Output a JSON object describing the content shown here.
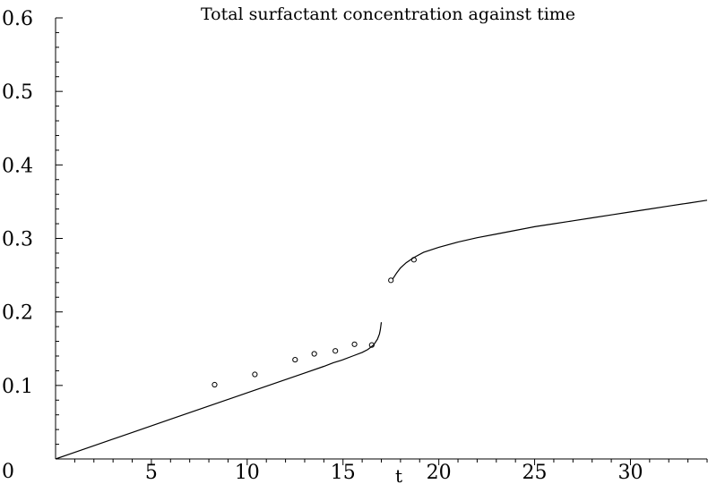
{
  "chart_data": {
    "type": "line",
    "title": "Total surfactant concentration against time",
    "xlabel": "t",
    "ylabel": "",
    "xlim": [
      0,
      34
    ],
    "ylim": [
      0,
      0.6
    ],
    "x_ticks": [
      5,
      10,
      15,
      20,
      25,
      30
    ],
    "x_tick_labels": [
      "5",
      "10",
      "15",
      "20",
      "25",
      "30"
    ],
    "y_ticks": [
      0.1,
      0.2,
      0.3,
      0.4,
      0.5,
      0.6
    ],
    "y_tick_labels": [
      "0.1",
      "0.2",
      "0.3",
      "0.4",
      "0.5",
      "0.6"
    ],
    "origin_label": "0",
    "grid": false,
    "legend": "none",
    "series": [
      {
        "kind": "line",
        "segments": [
          {
            "x": [
              0,
              2,
              4,
              6,
              8,
              10,
              12,
              13,
              14,
              14.5,
              15,
              15.5,
              16,
              16.3,
              16.6,
              16.8,
              16.9,
              16.95,
              17.0
            ],
            "y": [
              0,
              0.018,
              0.036,
              0.054,
              0.072,
              0.09,
              0.108,
              0.117,
              0.126,
              0.131,
              0.135,
              0.14,
              0.145,
              0.149,
              0.155,
              0.163,
              0.17,
              0.176,
              0.186
            ]
          },
          {
            "x": [
              17.6,
              17.8,
              18.0,
              18.3,
              18.7,
              19.2,
              20,
              21,
              22,
              23,
              24,
              25,
              26,
              27,
              28,
              29,
              30,
              31,
              32,
              33,
              34
            ],
            "y": [
              0.245,
              0.253,
              0.26,
              0.267,
              0.274,
              0.281,
              0.288,
              0.295,
              0.301,
              0.306,
              0.311,
              0.316,
              0.32,
              0.324,
              0.328,
              0.332,
              0.336,
              0.34,
              0.344,
              0.348,
              0.352
            ]
          }
        ]
      },
      {
        "kind": "scatter",
        "x": [
          8.3,
          10.4,
          12.5,
          13.5,
          14.6,
          15.6,
          16.5,
          17.5,
          18.7
        ],
        "y": [
          0.101,
          0.115,
          0.135,
          0.143,
          0.147,
          0.156,
          0.155,
          0.243,
          0.271
        ]
      }
    ]
  }
}
